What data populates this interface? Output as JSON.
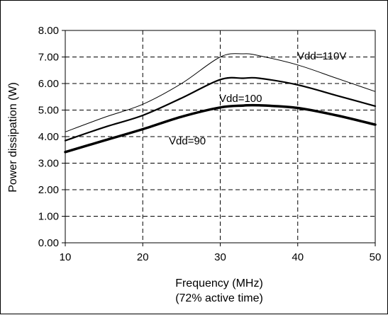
{
  "chart_data": {
    "type": "line",
    "title": "",
    "xlabel": "Frequency (MHz)",
    "xlabel_sub": "(72% active time)",
    "ylabel": "Power dissipation (W)",
    "xlim": [
      10,
      50
    ],
    "ylim": [
      0,
      8
    ],
    "x_ticks": [
      10,
      20,
      30,
      40,
      50
    ],
    "y_ticks": [
      0,
      1,
      2,
      3,
      4,
      5,
      6,
      7,
      8
    ],
    "y_tick_decimals": 2,
    "grid": true,
    "legend": "inline-labels",
    "x": [
      10,
      15,
      20,
      25,
      30,
      33,
      35,
      40,
      45,
      50
    ],
    "series": [
      {
        "name": "Vdd=110V",
        "values": [
          4.18,
          4.72,
          5.22,
          6.0,
          7.0,
          7.12,
          7.05,
          6.7,
          6.2,
          5.7
        ],
        "stroke_width": 1
      },
      {
        "name": "Vdd=100",
        "values": [
          3.85,
          4.35,
          4.8,
          5.45,
          6.15,
          6.2,
          6.2,
          5.95,
          5.55,
          5.15
        ],
        "stroke_width": 2.2
      },
      {
        "name": "Vdd=90",
        "values": [
          3.42,
          3.85,
          4.28,
          4.75,
          5.1,
          5.17,
          5.18,
          5.08,
          4.8,
          4.45
        ],
        "stroke_width": 3.5
      }
    ]
  }
}
